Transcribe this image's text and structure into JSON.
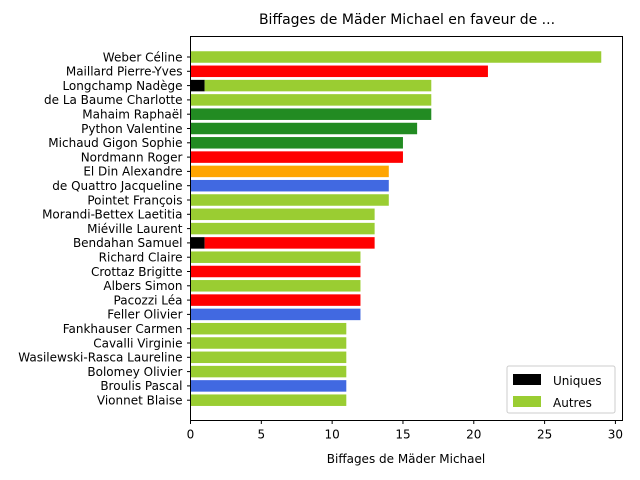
{
  "chart_data": {
    "type": "bar",
    "orientation": "horizontal",
    "stacked": true,
    "title": "Biffages de Mäder Michael en faveur de ...",
    "xlabel": "Biffages de Mäder Michael",
    "ylabel": "",
    "xlim": [
      0,
      30.5
    ],
    "xticks": [
      0,
      5,
      10,
      15,
      20,
      25,
      30
    ],
    "grid": false,
    "legend_position": "lower-right",
    "legend": [
      {
        "label": "Uniques",
        "color": "#000000"
      },
      {
        "label": "Autres",
        "color": "#9acd32"
      }
    ],
    "categories": [
      {
        "name": "Weber Céline",
        "uniques": 0,
        "autres": 29,
        "color": "#9acd32"
      },
      {
        "name": "Maillard Pierre-Yves",
        "uniques": 0,
        "autres": 21,
        "color": "#ff0000"
      },
      {
        "name": "Longchamp Nadège",
        "uniques": 1,
        "autres": 16,
        "color": "#9acd32"
      },
      {
        "name": "de La Baume Charlotte",
        "uniques": 0,
        "autres": 17,
        "color": "#9acd32"
      },
      {
        "name": "Mahaim Raphaël",
        "uniques": 0,
        "autres": 17,
        "color": "#228b22"
      },
      {
        "name": "Python Valentine",
        "uniques": 0,
        "autres": 16,
        "color": "#228b22"
      },
      {
        "name": "Michaud Gigon Sophie",
        "uniques": 0,
        "autres": 15,
        "color": "#228b22"
      },
      {
        "name": "Nordmann Roger",
        "uniques": 0,
        "autres": 15,
        "color": "#ff0000"
      },
      {
        "name": "El Din Alexandre",
        "uniques": 0,
        "autres": 14,
        "color": "#ffa500"
      },
      {
        "name": "de Quattro Jacqueline",
        "uniques": 0,
        "autres": 14,
        "color": "#4169e1"
      },
      {
        "name": "Pointet François",
        "uniques": 0,
        "autres": 14,
        "color": "#9acd32"
      },
      {
        "name": "Morandi-Bettex Laetitia",
        "uniques": 0,
        "autres": 13,
        "color": "#9acd32"
      },
      {
        "name": "Miéville Laurent",
        "uniques": 0,
        "autres": 13,
        "color": "#9acd32"
      },
      {
        "name": "Bendahan Samuel",
        "uniques": 1,
        "autres": 12,
        "color": "#ff0000"
      },
      {
        "name": "Richard Claire",
        "uniques": 0,
        "autres": 12,
        "color": "#9acd32"
      },
      {
        "name": "Crottaz Brigitte",
        "uniques": 0,
        "autres": 12,
        "color": "#ff0000"
      },
      {
        "name": "Albers Simon",
        "uniques": 0,
        "autres": 12,
        "color": "#9acd32"
      },
      {
        "name": "Pacozzi Léa",
        "uniques": 0,
        "autres": 12,
        "color": "#ff0000"
      },
      {
        "name": "Feller Olivier",
        "uniques": 0,
        "autres": 12,
        "color": "#4169e1"
      },
      {
        "name": "Fankhauser Carmen",
        "uniques": 0,
        "autres": 11,
        "color": "#9acd32"
      },
      {
        "name": "Cavalli Virginie",
        "uniques": 0,
        "autres": 11,
        "color": "#9acd32"
      },
      {
        "name": "Wasilewski-Rasca Laureline",
        "uniques": 0,
        "autres": 11,
        "color": "#9acd32"
      },
      {
        "name": "Bolomey Olivier",
        "uniques": 0,
        "autres": 11,
        "color": "#9acd32"
      },
      {
        "name": "Broulis Pascal",
        "uniques": 0,
        "autres": 11,
        "color": "#4169e1"
      },
      {
        "name": "Vionnet Blaise",
        "uniques": 0,
        "autres": 11,
        "color": "#9acd32"
      }
    ]
  }
}
